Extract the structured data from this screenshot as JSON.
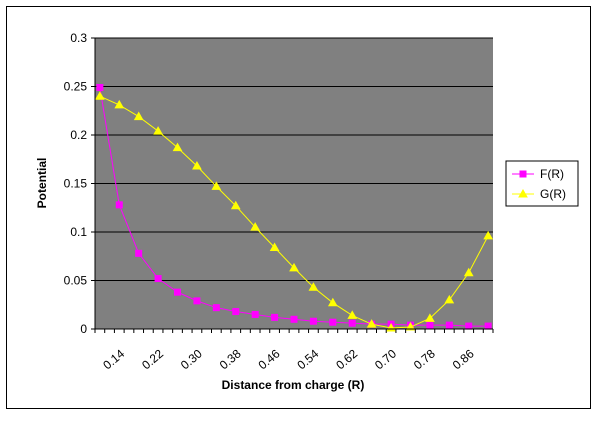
{
  "chart_data": {
    "type": "line",
    "xlabel": "Distance from charge (R)",
    "ylabel": "Potential",
    "ylim": [
      0,
      0.3
    ],
    "yticks": [
      "0",
      "0.05",
      "0.1",
      "0.15",
      "0.2",
      "0.25",
      "0.3"
    ],
    "x": [
      0.1,
      0.12,
      0.14,
      0.16,
      0.18,
      0.2,
      0.22,
      0.24,
      0.26,
      0.28,
      0.3,
      0.32,
      0.34,
      0.36,
      0.38,
      0.4,
      0.42,
      0.44,
      0.46,
      0.48,
      0.5,
      0.52,
      0.54,
      0.56,
      0.58,
      0.6,
      0.62,
      0.64,
      0.66,
      0.68,
      0.7,
      0.72,
      0.74,
      0.76,
      0.78,
      0.8,
      0.82,
      0.84,
      0.86,
      0.88,
      0.9
    ],
    "xtick_labels": [
      "0.14",
      "0.22",
      "0.30",
      "0.38",
      "0.46",
      "0.54",
      "0.62",
      "0.70",
      "0.78",
      "0.86"
    ],
    "series": [
      {
        "name": "F(R)",
        "color": "#FF00FF",
        "marker": "square",
        "x": [
          0.1,
          0.14,
          0.18,
          0.22,
          0.26,
          0.3,
          0.34,
          0.38,
          0.42,
          0.46,
          0.5,
          0.54,
          0.58,
          0.62,
          0.66,
          0.7,
          0.74,
          0.78,
          0.82,
          0.86,
          0.9
        ],
        "values": [
          0.249,
          0.128,
          0.078,
          0.052,
          0.038,
          0.029,
          0.022,
          0.018,
          0.015,
          0.012,
          0.01,
          0.008,
          0.007,
          0.006,
          0.005,
          0.005,
          0.004,
          0.004,
          0.004,
          0.003,
          0.003
        ]
      },
      {
        "name": "G(R)",
        "color": "#FFFF00",
        "marker": "triangle",
        "x": [
          0.1,
          0.14,
          0.18,
          0.22,
          0.26,
          0.3,
          0.34,
          0.38,
          0.42,
          0.46,
          0.5,
          0.54,
          0.58,
          0.62,
          0.66,
          0.7,
          0.74,
          0.78,
          0.82,
          0.86,
          0.9
        ],
        "values": [
          0.24,
          0.231,
          0.219,
          0.204,
          0.187,
          0.168,
          0.147,
          0.127,
          0.105,
          0.084,
          0.063,
          0.043,
          0.027,
          0.014,
          0.005,
          0.001,
          0.002,
          0.011,
          0.03,
          0.058,
          0.096
        ]
      }
    ],
    "grid": true,
    "legend_position": "right",
    "plot_background": "#808080",
    "gridline_color": "#000000"
  }
}
